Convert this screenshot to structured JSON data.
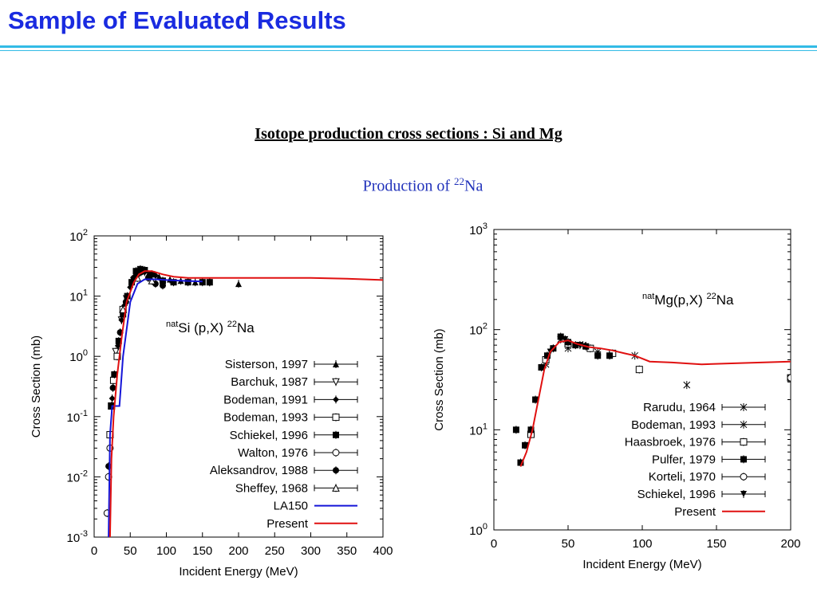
{
  "slide": {
    "title": "Sample of Evaluated Results",
    "subtitle": "Isotope production cross sections : Si and Mg",
    "production_prefix": "Production of ",
    "production_mass": "22",
    "production_element": "Na"
  },
  "chart_data": [
    {
      "type": "scatter",
      "reaction": {
        "pre": "nat",
        "target": "Si (p,X)",
        "mass": "22",
        "product": "Na"
      },
      "xlabel": "Incident Energy (MeV)",
      "ylabel": "Cross Section (mb)",
      "xlim": [
        0,
        400
      ],
      "ylim": [
        0.001,
        100
      ],
      "yscale": "log",
      "x_ticks": [
        "0",
        "50",
        "100",
        "150",
        "200",
        "250",
        "300",
        "350",
        "400"
      ],
      "y_ticks": [
        {
          "base": "10",
          "exp": "2"
        },
        {
          "base": "10",
          "exp": "1"
        },
        {
          "base": "10",
          "exp": "0"
        },
        {
          "base": "10",
          "exp": "-1"
        },
        {
          "base": "10",
          "exp": "-2"
        },
        {
          "base": "10",
          "exp": "-3"
        }
      ],
      "legend_position": "right",
      "series": [
        {
          "name": "Sisterson, 1997",
          "marker": "triangle-filled",
          "points": [
            [
              58,
              25
            ],
            [
              65,
              26
            ],
            [
              75,
              23
            ],
            [
              90,
              21
            ],
            [
              105,
              19
            ],
            [
              120,
              18
            ],
            [
              140,
              17
            ],
            [
              160,
              17
            ],
            [
              200,
              16
            ]
          ]
        },
        {
          "name": "Barchuk, 1987",
          "marker": "triangle-down-open",
          "points": [
            [
              30,
              1.2
            ],
            [
              38,
              4
            ],
            [
              45,
              9
            ],
            [
              55,
              18
            ]
          ]
        },
        {
          "name": "Bodeman, 1991",
          "marker": "diamond-filled",
          "points": [
            [
              25,
              0.2
            ],
            [
              28,
              0.5
            ],
            [
              33,
              1.5
            ],
            [
              38,
              4
            ],
            [
              42,
              7
            ],
            [
              50,
              14
            ],
            [
              60,
              22
            ],
            [
              70,
              25
            ],
            [
              85,
              22
            ]
          ]
        },
        {
          "name": "Bodeman, 1993",
          "marker": "square-open",
          "points": [
            [
              22,
              0.05
            ],
            [
              24,
              0.15
            ],
            [
              27,
              0.4
            ],
            [
              32,
              1
            ],
            [
              40,
              6
            ]
          ]
        },
        {
          "name": "Schiekel, 1996",
          "marker": "square-filled",
          "points": [
            [
              24,
              0.15
            ],
            [
              28,
              0.5
            ],
            [
              34,
              1.8
            ],
            [
              40,
              5
            ],
            [
              46,
              10
            ],
            [
              52,
              17
            ],
            [
              58,
              26
            ],
            [
              64,
              28
            ],
            [
              70,
              27
            ],
            [
              80,
              23
            ],
            [
              95,
              18
            ],
            [
              110,
              17
            ],
            [
              130,
              17
            ],
            [
              150,
              17
            ],
            [
              160,
              17
            ]
          ]
        },
        {
          "name": "Walton, 1976",
          "marker": "circle-open",
          "points": [
            [
              18,
              0.0025
            ],
            [
              20,
              0.01
            ],
            [
              22,
              0.03
            ]
          ]
        },
        {
          "name": "Aleksandrov, 1988",
          "marker": "circle-filled",
          "points": [
            [
              20,
              0.015
            ],
            [
              26,
              0.3
            ],
            [
              36,
              2.5
            ],
            [
              44,
              8
            ],
            [
              55,
              20
            ],
            [
              65,
              25
            ],
            [
              75,
              20
            ],
            [
              85,
              16
            ],
            [
              95,
              15
            ]
          ]
        },
        {
          "name": "Sheffey, 1968",
          "marker": "triangle-open",
          "points": [
            [
              40,
              6
            ],
            [
              60,
              20
            ],
            [
              80,
              18
            ]
          ]
        },
        {
          "name": "LA150",
          "marker": "line",
          "color": "#1515d8",
          "points": [
            [
              20,
              0.001
            ],
            [
              22,
              0.05
            ],
            [
              25,
              0.15
            ],
            [
              35,
              0.15
            ],
            [
              40,
              1
            ],
            [
              50,
              8
            ],
            [
              60,
              16
            ],
            [
              70,
              19
            ],
            [
              85,
              19
            ],
            [
              100,
              18.5
            ],
            [
              120,
              18
            ],
            [
              150,
              17.5
            ]
          ]
        },
        {
          "name": "Present",
          "marker": "line",
          "color": "#e01010",
          "points": [
            [
              22,
              0.001
            ],
            [
              24,
              0.02
            ],
            [
              27,
              0.1
            ],
            [
              32,
              0.5
            ],
            [
              38,
              2
            ],
            [
              45,
              8
            ],
            [
              55,
              17
            ],
            [
              62,
              23
            ],
            [
              70,
              26
            ],
            [
              80,
              26
            ],
            [
              95,
              23
            ],
            [
              110,
              21
            ],
            [
              130,
              20
            ],
            [
              160,
              20
            ],
            [
              200,
              20
            ],
            [
              250,
              20
            ],
            [
              300,
              20
            ],
            [
              350,
              19.5
            ],
            [
              400,
              18.5
            ]
          ]
        }
      ]
    },
    {
      "type": "scatter",
      "reaction": {
        "pre": "nat",
        "target": "Mg(p,X)",
        "mass": "22",
        "product": "Na"
      },
      "xlabel": "Incident Energy (MeV)",
      "ylabel": "Cross Section (mb)",
      "xlim": [
        0,
        200
      ],
      "ylim": [
        1,
        1000
      ],
      "yscale": "log",
      "x_ticks": [
        "0",
        "50",
        "100",
        "150",
        "200"
      ],
      "y_ticks": [
        {
          "base": "10",
          "exp": "3"
        },
        {
          "base": "10",
          "exp": "2"
        },
        {
          "base": "10",
          "exp": "1"
        },
        {
          "base": "10",
          "exp": "0"
        }
      ],
      "legend_position": "bottom-right",
      "series": [
        {
          "name": "Rarudu, 1964",
          "marker": "cross",
          "points": [
            [
              45,
              80
            ],
            [
              60,
              70
            ],
            [
              95,
              55
            ],
            [
              130,
              28
            ]
          ]
        },
        {
          "name": "Bodeman, 1993",
          "marker": "star",
          "points": [
            [
              35,
              45
            ],
            [
              50,
              65
            ],
            [
              70,
              60
            ]
          ]
        },
        {
          "name": "Haasbroek, 1976",
          "marker": "square-open",
          "points": [
            [
              25,
              9
            ],
            [
              35,
              50
            ],
            [
              50,
              72
            ],
            [
              65,
              65
            ],
            [
              80,
              58
            ],
            [
              98,
              40
            ],
            [
              200,
              33
            ]
          ]
        },
        {
          "name": "Pulfer, 1979",
          "marker": "square-filled",
          "points": [
            [
              15,
              10
            ],
            [
              18,
              4.7
            ],
            [
              21,
              7
            ],
            [
              25,
              10
            ],
            [
              28,
              20
            ],
            [
              32,
              42
            ],
            [
              36,
              55
            ],
            [
              40,
              65
            ],
            [
              45,
              85
            ],
            [
              50,
              75
            ],
            [
              55,
              70
            ],
            [
              62,
              68
            ],
            [
              70,
              55
            ],
            [
              78,
              55
            ]
          ]
        },
        {
          "name": "Korteli, 1970",
          "marker": "circle-open",
          "points": [
            [
              200,
              33
            ]
          ]
        },
        {
          "name": "Schiekel, 1996",
          "marker": "triangle-down-filled",
          "points": [
            [
              38,
              60
            ],
            [
              48,
              80
            ],
            [
              58,
              70
            ]
          ]
        },
        {
          "name": "Present",
          "marker": "line",
          "color": "#e01010",
          "points": [
            [
              18,
              4.3
            ],
            [
              22,
              6
            ],
            [
              26,
              10
            ],
            [
              30,
              20
            ],
            [
              34,
              40
            ],
            [
              38,
              60
            ],
            [
              44,
              75
            ],
            [
              50,
              78
            ],
            [
              56,
              72
            ],
            [
              64,
              67
            ],
            [
              72,
              65
            ],
            [
              80,
              62
            ],
            [
              88,
              58
            ],
            [
              95,
              55
            ],
            [
              105,
              48
            ],
            [
              120,
              47
            ],
            [
              140,
              45
            ],
            [
              160,
              46
            ],
            [
              180,
              47
            ],
            [
              200,
              48
            ]
          ]
        }
      ]
    }
  ]
}
